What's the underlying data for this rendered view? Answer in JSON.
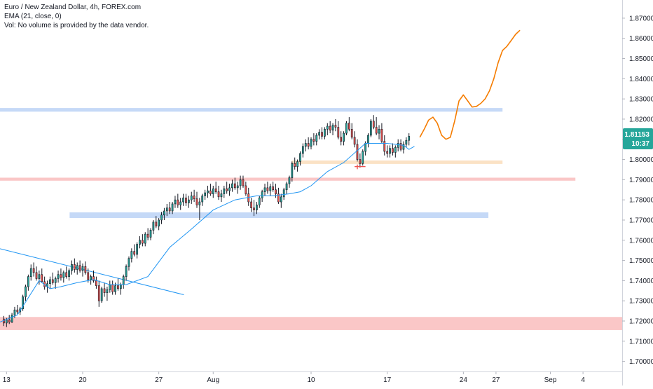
{
  "legend": {
    "title": "Euro / New Zealand Dollar, 4h, FOREX.com",
    "indicator": "EMA (21, close, 0)",
    "volume": "Vol: No volume is provided by the data vendor."
  },
  "price_badge": {
    "price": "1.81153",
    "countdown": "10:37",
    "color": "#26a69a"
  },
  "colors": {
    "up": "#26a69a",
    "down": "#ef5350",
    "candle": "#131722",
    "ema": "#2196f3",
    "projection": "#f57c00",
    "blue_zone": "#9fbff2",
    "red_zone": "#f7a1a1",
    "orange_zone": "#f9cf9e"
  },
  "chart_data": {
    "type": "candlestick",
    "y_axis": {
      "ylim": [
        1.695,
        1.879
      ],
      "ticks": [
        "1.87000",
        "1.86000",
        "1.85000",
        "1.84000",
        "1.83000",
        "1.82000",
        "1.81000",
        "1.80000",
        "1.79000",
        "1.78000",
        "1.77000",
        "1.76000",
        "1.75000",
        "1.74000",
        "1.73000",
        "1.72000",
        "1.71000",
        "1.70000"
      ],
      "position": "right"
    },
    "x_axis": {
      "tick_labels": [
        {
          "label": "13",
          "day": 0
        },
        {
          "label": "20",
          "day": 7
        },
        {
          "label": "27",
          "day": 14
        },
        {
          "label": "Aug",
          "day": 19
        },
        {
          "label": "10",
          "day": 28
        },
        {
          "label": "17",
          "day": 35
        },
        {
          "label": "24",
          "day": 42
        },
        {
          "label": "27",
          "day": 45
        },
        {
          "label": "Sep",
          "day": 50
        },
        {
          "label": "4",
          "day": 53
        }
      ],
      "xlim_days": [
        -0.6,
        56.6
      ]
    },
    "zones": [
      {
        "kind": "resistance",
        "color": "blue",
        "x0": -0.6,
        "x1": 45.6,
        "y0": 1.8237,
        "y1": 1.8255
      },
      {
        "kind": "resistance",
        "color": "red",
        "x0": -0.6,
        "x1": 52.3,
        "y0": 1.7895,
        "y1": 1.791
      },
      {
        "kind": "support",
        "color": "blue",
        "x0": 5.8,
        "x1": 44.3,
        "y0": 1.771,
        "y1": 1.7738
      },
      {
        "kind": "support",
        "color": "orange",
        "x0": 26.2,
        "x1": 45.6,
        "y0": 1.7978,
        "y1": 1.7995
      },
      {
        "kind": "support",
        "color": "red",
        "x0": -0.6,
        "x1": 56.6,
        "y0": 1.7155,
        "y1": 1.722
      }
    ],
    "trendline": {
      "x": [
        -0.6,
        16.3
      ],
      "y": [
        1.7558,
        1.733
      ]
    },
    "projection": {
      "x": [
        38.0,
        38.4,
        38.8,
        39.2,
        39.6,
        40.0,
        40.4,
        40.8,
        41.2,
        41.6,
        42.0,
        42.4,
        42.8,
        43.2,
        43.6,
        44.0,
        44.4,
        44.8,
        45.2,
        45.6,
        46.0,
        46.4,
        46.8,
        47.2
      ],
      "y": [
        1.811,
        1.815,
        1.8195,
        1.821,
        1.818,
        1.812,
        1.81,
        1.811,
        1.819,
        1.829,
        1.832,
        1.829,
        1.826,
        1.8263,
        1.8278,
        1.83,
        1.834,
        1.84,
        1.848,
        1.854,
        1.856,
        1.859,
        1.862,
        1.864
      ]
    },
    "ema": {
      "x": [
        -0.6,
        1.0,
        3.0,
        4.0,
        5.0,
        6.5,
        8.0,
        9.5,
        11.0,
        13.0,
        15.0,
        17.0,
        19.0,
        21.0,
        23.0,
        24.5,
        26.0,
        27.0,
        28.0,
        29.5,
        31.0,
        33.0,
        35.0,
        36.5,
        37.0,
        37.5
      ],
      "y": [
        1.7195,
        1.723,
        1.74,
        1.736,
        1.737,
        1.739,
        1.7405,
        1.738,
        1.738,
        1.742,
        1.7565,
        1.7655,
        1.775,
        1.78,
        1.782,
        1.782,
        1.783,
        1.784,
        1.787,
        1.794,
        1.7985,
        1.808,
        1.808,
        1.807,
        1.805,
        1.8065
      ]
    },
    "candles": [
      [
        -0.25,
        1.721,
        1.7225,
        1.7175,
        1.719
      ],
      [
        0.0,
        1.719,
        1.7215,
        1.717,
        1.7205
      ],
      [
        0.25,
        1.7205,
        1.723,
        1.7185,
        1.7195
      ],
      [
        0.5,
        1.7195,
        1.724,
        1.719,
        1.723
      ],
      [
        0.75,
        1.723,
        1.727,
        1.7215,
        1.7255
      ],
      [
        1.0,
        1.7255,
        1.728,
        1.7235,
        1.7245
      ],
      [
        1.25,
        1.7245,
        1.727,
        1.723,
        1.726
      ],
      [
        1.5,
        1.726,
        1.733,
        1.725,
        1.732
      ],
      [
        1.75,
        1.732,
        1.738,
        1.73,
        1.737
      ],
      [
        2.0,
        1.737,
        1.743,
        1.735,
        1.742
      ],
      [
        2.25,
        1.742,
        1.748,
        1.74,
        1.746
      ],
      [
        2.5,
        1.746,
        1.749,
        1.742,
        1.744
      ],
      [
        2.75,
        1.744,
        1.747,
        1.74,
        1.741
      ],
      [
        3.0,
        1.741,
        1.745,
        1.738,
        1.743
      ],
      [
        3.25,
        1.743,
        1.746,
        1.739,
        1.7395
      ],
      [
        3.5,
        1.7395,
        1.742,
        1.7355,
        1.737
      ],
      [
        3.75,
        1.737,
        1.74,
        1.734,
        1.7385
      ],
      [
        4.0,
        1.7385,
        1.742,
        1.736,
        1.7405
      ],
      [
        4.25,
        1.7405,
        1.744,
        1.738,
        1.739
      ],
      [
        4.5,
        1.739,
        1.742,
        1.736,
        1.741
      ],
      [
        4.75,
        1.741,
        1.745,
        1.739,
        1.743
      ],
      [
        5.0,
        1.743,
        1.746,
        1.74,
        1.7415
      ],
      [
        5.25,
        1.7415,
        1.745,
        1.739,
        1.744
      ],
      [
        5.5,
        1.744,
        1.747,
        1.741,
        1.742
      ],
      [
        5.75,
        1.742,
        1.746,
        1.74,
        1.745
      ],
      [
        6.0,
        1.745,
        1.75,
        1.743,
        1.748
      ],
      [
        6.25,
        1.748,
        1.751,
        1.744,
        1.7455
      ],
      [
        6.5,
        1.7455,
        1.749,
        1.743,
        1.7475
      ],
      [
        6.75,
        1.7475,
        1.75,
        1.744,
        1.745
      ],
      [
        7.0,
        1.745,
        1.7485,
        1.742,
        1.747
      ],
      [
        7.25,
        1.747,
        1.7495,
        1.743,
        1.744
      ],
      [
        7.5,
        1.744,
        1.746,
        1.739,
        1.7405
      ],
      [
        7.75,
        1.7405,
        1.743,
        1.738,
        1.742
      ],
      [
        8.0,
        1.742,
        1.745,
        1.739,
        1.74
      ],
      [
        8.25,
        1.74,
        1.742,
        1.736,
        1.7375
      ],
      [
        8.5,
        1.7375,
        1.74,
        1.727,
        1.73
      ],
      [
        8.75,
        1.73,
        1.737,
        1.729,
        1.736
      ],
      [
        9.0,
        1.736,
        1.739,
        1.732,
        1.734
      ],
      [
        9.25,
        1.734,
        1.737,
        1.73,
        1.7355
      ],
      [
        9.5,
        1.7355,
        1.74,
        1.734,
        1.738
      ],
      [
        9.75,
        1.738,
        1.74,
        1.733,
        1.7345
      ],
      [
        10.0,
        1.7345,
        1.739,
        1.733,
        1.7375
      ],
      [
        10.25,
        1.7375,
        1.741,
        1.735,
        1.736
      ],
      [
        10.5,
        1.736,
        1.739,
        1.733,
        1.738
      ],
      [
        10.75,
        1.738,
        1.743,
        1.736,
        1.742
      ],
      [
        11.0,
        1.742,
        1.748,
        1.74,
        1.747
      ],
      [
        11.25,
        1.747,
        1.752,
        1.745,
        1.751
      ],
      [
        11.5,
        1.751,
        1.756,
        1.749,
        1.7545
      ],
      [
        11.75,
        1.7545,
        1.758,
        1.752,
        1.753
      ],
      [
        12.0,
        1.753,
        1.759,
        1.751,
        1.758
      ],
      [
        12.25,
        1.758,
        1.762,
        1.756,
        1.76
      ],
      [
        12.5,
        1.76,
        1.763,
        1.757,
        1.7585
      ],
      [
        12.75,
        1.7585,
        1.764,
        1.757,
        1.763
      ],
      [
        13.0,
        1.763,
        1.766,
        1.76,
        1.7615
      ],
      [
        13.25,
        1.7615,
        1.766,
        1.76,
        1.765
      ],
      [
        13.5,
        1.765,
        1.77,
        1.763,
        1.769
      ],
      [
        13.75,
        1.769,
        1.772,
        1.766,
        1.767
      ],
      [
        14.0,
        1.767,
        1.771,
        1.765,
        1.77
      ],
      [
        14.25,
        1.77,
        1.774,
        1.768,
        1.7725
      ],
      [
        14.5,
        1.7725,
        1.776,
        1.77,
        1.7745
      ],
      [
        14.75,
        1.7745,
        1.778,
        1.772,
        1.776
      ],
      [
        15.0,
        1.776,
        1.779,
        1.773,
        1.7745
      ],
      [
        15.25,
        1.7745,
        1.779,
        1.773,
        1.778
      ],
      [
        15.5,
        1.778,
        1.782,
        1.776,
        1.78
      ],
      [
        15.75,
        1.78,
        1.783,
        1.776,
        1.7775
      ],
      [
        16.0,
        1.7775,
        1.781,
        1.775,
        1.779
      ],
      [
        16.25,
        1.779,
        1.783,
        1.777,
        1.781
      ],
      [
        16.5,
        1.781,
        1.783,
        1.777,
        1.7785
      ],
      [
        16.75,
        1.7785,
        1.782,
        1.776,
        1.78
      ],
      [
        17.0,
        1.78,
        1.784,
        1.778,
        1.782
      ],
      [
        17.25,
        1.782,
        1.785,
        1.779,
        1.7805
      ],
      [
        17.5,
        1.7805,
        1.784,
        1.776,
        1.7775
      ],
      [
        17.75,
        1.7775,
        1.781,
        1.77,
        1.779
      ],
      [
        18.0,
        1.779,
        1.783,
        1.777,
        1.782
      ],
      [
        18.25,
        1.782,
        1.785,
        1.78,
        1.7835
      ],
      [
        18.5,
        1.7835,
        1.787,
        1.781,
        1.7845
      ],
      [
        18.75,
        1.7845,
        1.788,
        1.782,
        1.783
      ],
      [
        19.0,
        1.783,
        1.787,
        1.781,
        1.7855
      ],
      [
        19.25,
        1.7855,
        1.789,
        1.783,
        1.784
      ],
      [
        19.5,
        1.784,
        1.787,
        1.78,
        1.7815
      ],
      [
        19.75,
        1.7815,
        1.785,
        1.779,
        1.783
      ],
      [
        20.0,
        1.783,
        1.787,
        1.781,
        1.7855
      ],
      [
        20.25,
        1.7855,
        1.789,
        1.783,
        1.7845
      ],
      [
        20.5,
        1.7845,
        1.788,
        1.782,
        1.786
      ],
      [
        20.75,
        1.786,
        1.79,
        1.784,
        1.788
      ],
      [
        21.0,
        1.788,
        1.791,
        1.785,
        1.786
      ],
      [
        21.25,
        1.786,
        1.789,
        1.783,
        1.787
      ],
      [
        21.5,
        1.787,
        1.792,
        1.785,
        1.79
      ],
      [
        21.75,
        1.79,
        1.792,
        1.786,
        1.787
      ],
      [
        22.0,
        1.787,
        1.789,
        1.782,
        1.783
      ],
      [
        22.25,
        1.783,
        1.786,
        1.777,
        1.779
      ],
      [
        22.5,
        1.779,
        1.781,
        1.774,
        1.776
      ],
      [
        22.75,
        1.776,
        1.78,
        1.772,
        1.775
      ],
      [
        23.0,
        1.775,
        1.779,
        1.773,
        1.7775
      ],
      [
        23.25,
        1.7775,
        1.782,
        1.776,
        1.781
      ],
      [
        23.5,
        1.781,
        1.785,
        1.779,
        1.784
      ],
      [
        23.75,
        1.784,
        1.788,
        1.782,
        1.786
      ],
      [
        24.0,
        1.786,
        1.789,
        1.783,
        1.7845
      ],
      [
        24.25,
        1.7845,
        1.788,
        1.782,
        1.7865
      ],
      [
        24.5,
        1.7865,
        1.789,
        1.784,
        1.785
      ],
      [
        24.75,
        1.785,
        1.788,
        1.781,
        1.783
      ],
      [
        25.0,
        1.783,
        1.786,
        1.778,
        1.779
      ],
      [
        25.25,
        1.779,
        1.783,
        1.776,
        1.7815
      ],
      [
        25.5,
        1.7815,
        1.786,
        1.78,
        1.785
      ],
      [
        25.75,
        1.785,
        1.789,
        1.783,
        1.788
      ],
      [
        26.0,
        1.788,
        1.792,
        1.786,
        1.791
      ],
      [
        26.25,
        1.791,
        1.799,
        1.789,
        1.798
      ],
      [
        26.5,
        1.798,
        1.801,
        1.795,
        1.7965
      ],
      [
        26.75,
        1.7965,
        1.8,
        1.794,
        1.799
      ],
      [
        27.0,
        1.799,
        1.804,
        1.797,
        1.803
      ],
      [
        27.25,
        1.803,
        1.808,
        1.801,
        1.8065
      ],
      [
        27.5,
        1.8065,
        1.81,
        1.804,
        1.808
      ],
      [
        27.75,
        1.808,
        1.811,
        1.805,
        1.8065
      ],
      [
        28.0,
        1.8065,
        1.811,
        1.805,
        1.81
      ],
      [
        28.25,
        1.81,
        1.813,
        1.807,
        1.809
      ],
      [
        28.5,
        1.809,
        1.813,
        1.807,
        1.812
      ],
      [
        28.75,
        1.812,
        1.815,
        1.81,
        1.8135
      ],
      [
        29.0,
        1.8135,
        1.816,
        1.81,
        1.8115
      ],
      [
        29.25,
        1.8115,
        1.816,
        1.81,
        1.815
      ],
      [
        29.5,
        1.815,
        1.818,
        1.812,
        1.8165
      ],
      [
        29.75,
        1.8165,
        1.819,
        1.813,
        1.8145
      ],
      [
        30.0,
        1.8145,
        1.818,
        1.812,
        1.817
      ],
      [
        30.25,
        1.817,
        1.82,
        1.814,
        1.816
      ],
      [
        30.5,
        1.816,
        1.819,
        1.81,
        1.811
      ],
      [
        30.75,
        1.811,
        1.814,
        1.807,
        1.809
      ],
      [
        31.0,
        1.809,
        1.814,
        1.807,
        1.813
      ],
      [
        31.25,
        1.813,
        1.819,
        1.812,
        1.818
      ],
      [
        31.5,
        1.818,
        1.821,
        1.814,
        1.815
      ],
      [
        31.75,
        1.815,
        1.818,
        1.81,
        1.811
      ],
      [
        32.0,
        1.811,
        1.814,
        1.806,
        1.8075
      ],
      [
        32.25,
        1.8075,
        1.81,
        1.799,
        1.8
      ],
      [
        32.5,
        1.8,
        1.803,
        1.796,
        1.798
      ],
      [
        32.75,
        1.798,
        1.805,
        1.797,
        1.804
      ],
      [
        33.0,
        1.804,
        1.809,
        1.802,
        1.808
      ],
      [
        33.25,
        1.808,
        1.813,
        1.806,
        1.812
      ],
      [
        33.5,
        1.812,
        1.82,
        1.811,
        1.819
      ],
      [
        33.75,
        1.819,
        1.822,
        1.815,
        1.816
      ],
      [
        34.0,
        1.816,
        1.821,
        1.812,
        1.813
      ],
      [
        34.25,
        1.813,
        1.817,
        1.81,
        1.815
      ],
      [
        34.5,
        1.815,
        1.818,
        1.808,
        1.809
      ],
      [
        34.75,
        1.809,
        1.812,
        1.802,
        1.804
      ],
      [
        35.0,
        1.804,
        1.807,
        1.801,
        1.803
      ],
      [
        35.25,
        1.803,
        1.807,
        1.801,
        1.8055
      ],
      [
        35.5,
        1.8055,
        1.808,
        1.802,
        1.8035
      ],
      [
        35.75,
        1.8035,
        1.807,
        1.801,
        1.806
      ],
      [
        36.0,
        1.806,
        1.81,
        1.804,
        1.808
      ],
      [
        36.25,
        1.808,
        1.81,
        1.804,
        1.805
      ],
      [
        36.5,
        1.805,
        1.809,
        1.803,
        1.8075
      ],
      [
        36.75,
        1.8075,
        1.811,
        1.806,
        1.8095
      ],
      [
        37.0,
        1.8095,
        1.813,
        1.807,
        1.8115
      ]
    ]
  }
}
